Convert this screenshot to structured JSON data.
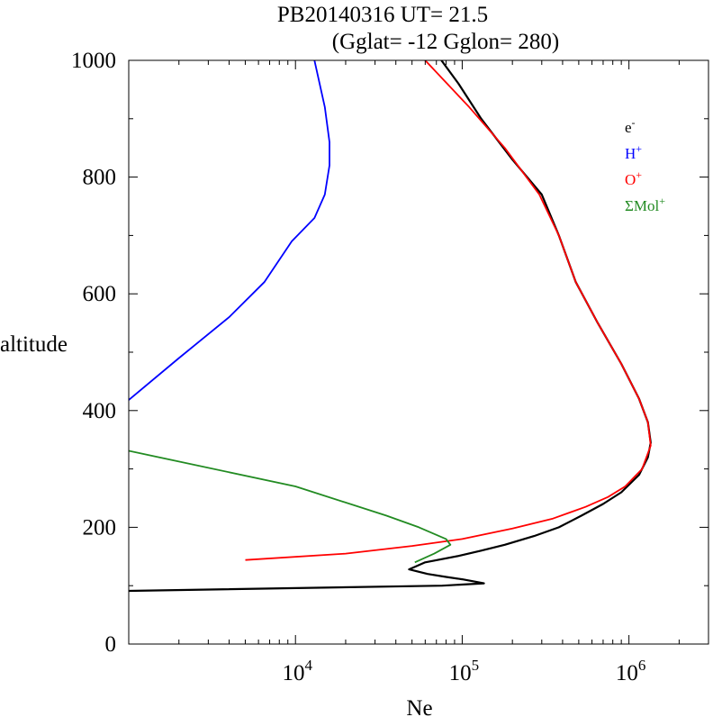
{
  "chart_data": {
    "type": "line",
    "title": "PB20140316   UT=  21.5",
    "subtitle": "(Gglat= -12   Gglon=  280)",
    "xlabel": "Ne",
    "ylabel": "altitude",
    "xscale": "log",
    "xlim": [
      1000,
      3000000
    ],
    "ylim": [
      0,
      1000
    ],
    "x_ticks": [
      {
        "base": "10",
        "exp": "4"
      },
      {
        "base": "10",
        "exp": "5"
      },
      {
        "base": "10",
        "exp": "6"
      }
    ],
    "y_ticks": [
      "0",
      "200",
      "400",
      "600",
      "800",
      "1000"
    ],
    "legend_position": "top-right",
    "series": [
      {
        "name": "e-",
        "legend_base": "e",
        "legend_sup": "-",
        "color": "#000000",
        "points": [
          [
            1000,
            91
          ],
          [
            76000,
            100
          ],
          [
            135000,
            104
          ],
          [
            100000,
            111
          ],
          [
            80000,
            115
          ],
          [
            62000,
            120
          ],
          [
            48000,
            128
          ],
          [
            60000,
            140
          ],
          [
            95000,
            151
          ],
          [
            130000,
            160
          ],
          [
            180000,
            170
          ],
          [
            270000,
            185
          ],
          [
            380000,
            200
          ],
          [
            520000,
            220
          ],
          [
            700000,
            240
          ],
          [
            900000,
            260
          ],
          [
            1150000,
            290
          ],
          [
            1300000,
            320
          ],
          [
            1350000,
            345
          ],
          [
            1300000,
            380
          ],
          [
            1150000,
            420
          ],
          [
            900000,
            480
          ],
          [
            650000,
            550
          ],
          [
            480000,
            620
          ],
          [
            380000,
            700
          ],
          [
            300000,
            770
          ],
          [
            200000,
            830
          ],
          [
            130000,
            900
          ],
          [
            95000,
            960
          ],
          [
            75000,
            1000
          ]
        ]
      },
      {
        "name": "H+",
        "legend_base": "H",
        "legend_sup": "+",
        "color": "#0000ff",
        "points": [
          [
            1000,
            418
          ],
          [
            2000,
            490
          ],
          [
            4000,
            560
          ],
          [
            6500,
            620
          ],
          [
            9500,
            690
          ],
          [
            13000,
            730
          ],
          [
            15000,
            770
          ],
          [
            16000,
            820
          ],
          [
            16000,
            860
          ],
          [
            15000,
            920
          ],
          [
            13000,
            1000
          ]
        ]
      },
      {
        "name": "O+",
        "legend_base": "O",
        "legend_sup": "+",
        "color": "#ff0000",
        "points": [
          [
            5000,
            144
          ],
          [
            20000,
            155
          ],
          [
            50000,
            168
          ],
          [
            100000,
            180
          ],
          [
            200000,
            198
          ],
          [
            350000,
            215
          ],
          [
            550000,
            235
          ],
          [
            750000,
            252
          ],
          [
            950000,
            270
          ],
          [
            1200000,
            300
          ],
          [
            1350000,
            340
          ],
          [
            1300000,
            380
          ],
          [
            1150000,
            420
          ],
          [
            900000,
            480
          ],
          [
            650000,
            550
          ],
          [
            480000,
            620
          ],
          [
            380000,
            700
          ],
          [
            290000,
            770
          ],
          [
            180000,
            850
          ],
          [
            110000,
            920
          ],
          [
            60000,
            1000
          ]
        ]
      },
      {
        "name": "ΣMol+",
        "legend_base": "ΣMol",
        "legend_sup": "+",
        "color": "#228b22",
        "points": [
          [
            1000,
            331
          ],
          [
            10000,
            270
          ],
          [
            35000,
            220
          ],
          [
            55000,
            200
          ],
          [
            80000,
            180
          ],
          [
            85000,
            170
          ],
          [
            68000,
            155
          ],
          [
            52000,
            140
          ]
        ]
      }
    ]
  }
}
